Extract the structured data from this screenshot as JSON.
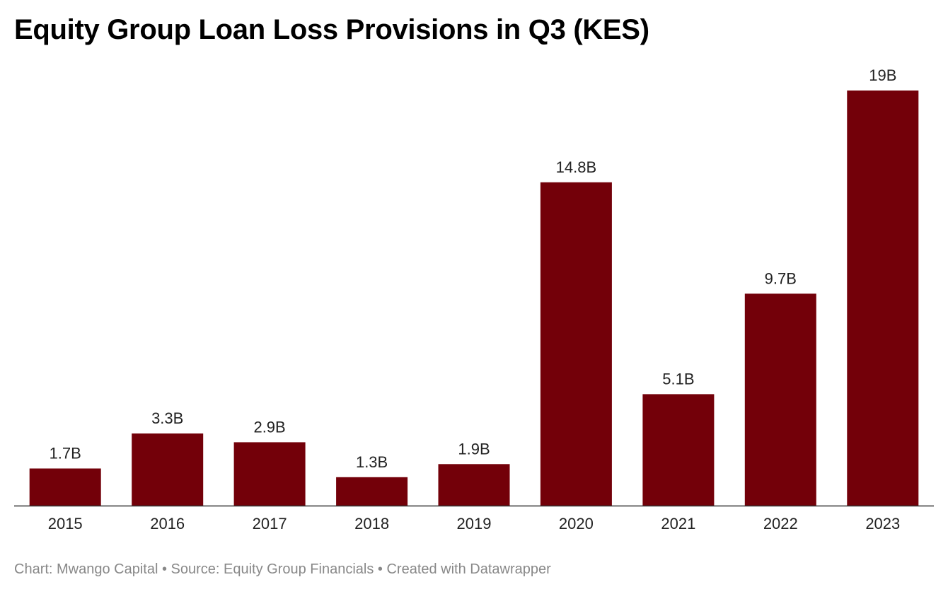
{
  "chart_data": {
    "type": "bar",
    "title": "Equity Group Loan Loss Provisions in Q3 (KES)",
    "categories": [
      "2015",
      "2016",
      "2017",
      "2018",
      "2019",
      "2020",
      "2021",
      "2022",
      "2023"
    ],
    "values": [
      1.7,
      3.3,
      2.9,
      1.3,
      1.9,
      14.8,
      5.1,
      9.7,
      19
    ],
    "data_labels": [
      "1.7B",
      "3.3B",
      "2.9B",
      "1.3B",
      "1.9B",
      "14.8B",
      "5.1B",
      "9.7B",
      "19B"
    ],
    "unit": "B",
    "ylim": [
      0,
      19
    ],
    "grid": false,
    "bar_color": "#730009"
  },
  "footer": {
    "credit": "Chart: Mwango Capital • Source: Equity Group Financials • Created with Datawrapper"
  }
}
